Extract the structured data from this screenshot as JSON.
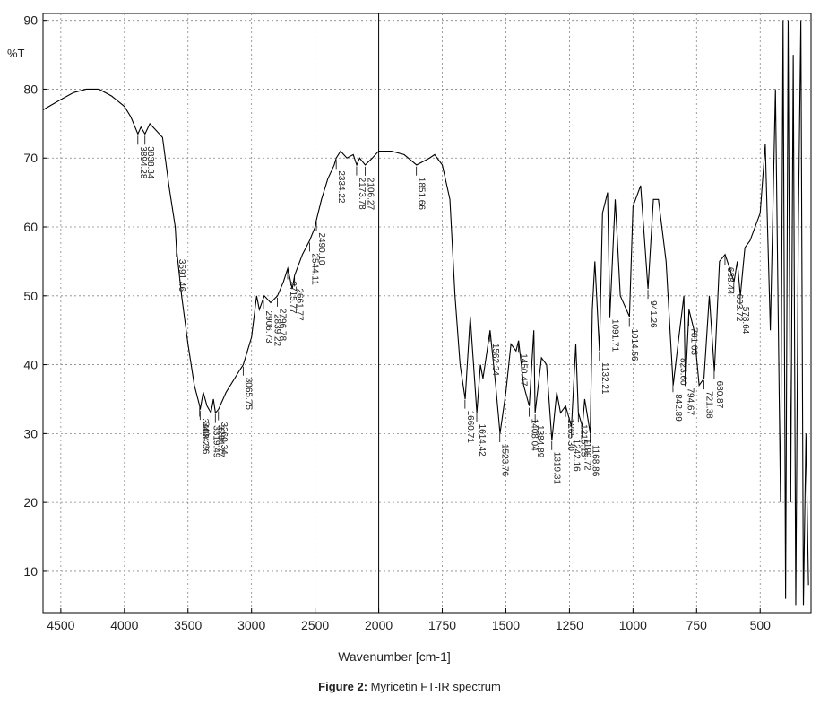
{
  "chart_data": {
    "type": "line",
    "ylabel": "%T",
    "xlabel": "Wavenumber [cm-1]",
    "caption_label": "Figure 2:",
    "caption": "Myricetin FT-IR spectrum",
    "xlim": [
      4640,
      300
    ],
    "scale_break": 2000,
    "ylim": [
      4,
      91
    ],
    "xticks": [
      4500,
      4000,
      3500,
      3000,
      2500,
      2000,
      1750,
      1500,
      1250,
      1000,
      750,
      500
    ],
    "yticks": [
      10,
      20,
      30,
      40,
      50,
      60,
      70,
      80,
      90
    ],
    "grid": true,
    "color": "#000000",
    "x": [
      4640,
      4500,
      4400,
      4300,
      4200,
      4100,
      4000,
      3950,
      3894,
      3870,
      3838,
      3800,
      3750,
      3700,
      3650,
      3600,
      3591,
      3550,
      3500,
      3450,
      3408,
      3404,
      3380,
      3350,
      3319,
      3300,
      3284,
      3260,
      3200,
      3100,
      3065,
      3000,
      2980,
      2960,
      2939,
      2900,
      2850,
      2796,
      2750,
      2715,
      2680,
      2661,
      2600,
      2544,
      2500,
      2490,
      2450,
      2400,
      2350,
      2334,
      2300,
      2250,
      2200,
      2173,
      2150,
      2106,
      2050,
      2000,
      1950,
      1900,
      1851,
      1800,
      1780,
      1750,
      1720,
      1700,
      1680,
      1660,
      1640,
      1614,
      1600,
      1590,
      1562,
      1540,
      1523,
      1500,
      1480,
      1460,
      1450,
      1430,
      1408,
      1390,
      1385,
      1360,
      1340,
      1319,
      1300,
      1285,
      1265,
      1242,
      1225,
      1215,
      1199,
      1190,
      1168,
      1160,
      1150,
      1132,
      1120,
      1100,
      1091,
      1070,
      1050,
      1014,
      1000,
      970,
      941,
      920,
      900,
      870,
      842,
      823,
      800,
      794,
      780,
      760,
      740,
      721,
      700,
      680,
      660,
      638,
      620,
      603,
      590,
      578,
      560,
      540,
      520,
      500,
      480,
      460,
      440,
      420,
      410,
      400,
      390,
      380,
      370,
      360,
      350,
      340,
      330,
      320,
      310
    ],
    "values": [
      77,
      78.5,
      79.5,
      80,
      80,
      79,
      77.5,
      76,
      73.5,
      74.5,
      73.5,
      75,
      74,
      73,
      66,
      60,
      57,
      50,
      43,
      37,
      34,
      33.5,
      36,
      34,
      33,
      35,
      33,
      33.5,
      36,
      39,
      40,
      44,
      47,
      50,
      48,
      50,
      49,
      50,
      52,
      54,
      51,
      53,
      56,
      58,
      60,
      61,
      64,
      67,
      69,
      70,
      71,
      70,
      70.5,
      69,
      70,
      69,
      70,
      71,
      71,
      70.5,
      69,
      70,
      70.5,
      69,
      64,
      50,
      40,
      35,
      47,
      33,
      40,
      38,
      45,
      37,
      30,
      36,
      43,
      42,
      43.5,
      37,
      34,
      45,
      33,
      41,
      40,
      29,
      36,
      33,
      34,
      31,
      43,
      33,
      31,
      35,
      30,
      48,
      55,
      42,
      62,
      65,
      47,
      64,
      50,
      47,
      63,
      66,
      51,
      64,
      64,
      55,
      37,
      43,
      50,
      37,
      48,
      45,
      37,
      38,
      50,
      39,
      55,
      56,
      54,
      52,
      55,
      50,
      57,
      58,
      60,
      62,
      72,
      45,
      80,
      20,
      90,
      6,
      90,
      20,
      85,
      5,
      60,
      90,
      5,
      30,
      8
    ],
    "peaks": [
      {
        "x": 3894.28,
        "label": "3894.28"
      },
      {
        "x": 3838.34,
        "label": "3838.34"
      },
      {
        "x": 3591.46,
        "label": "3591.46"
      },
      {
        "x": 3408.22,
        "label": "3408.22"
      },
      {
        "x": 3404.36,
        "label": "3404.36"
      },
      {
        "x": 3319.49,
        "label": "3319.49"
      },
      {
        "x": 3284.77,
        "label": "3284.77"
      },
      {
        "x": 3260.34,
        "label": "3260.34"
      },
      {
        "x": 3065.75,
        "label": "3065.75"
      },
      {
        "x": 2906.73,
        "label": "2906.73"
      },
      {
        "x": 2839.22,
        "label": "2839.22"
      },
      {
        "x": 2796.78,
        "label": "2796.78"
      },
      {
        "x": 2715.77,
        "label": "2715.77"
      },
      {
        "x": 2661.77,
        "label": "2661.77"
      },
      {
        "x": 2544.11,
        "label": "2544.11"
      },
      {
        "x": 2490.1,
        "label": "2490.10"
      },
      {
        "x": 2334.22,
        "label": "2334.22"
      },
      {
        "x": 2173.78,
        "label": "2173.78"
      },
      {
        "x": 2106.27,
        "label": "2106.27"
      },
      {
        "x": 1851.66,
        "label": "1851.66"
      },
      {
        "x": 1660.71,
        "label": "1660.71"
      },
      {
        "x": 1614.42,
        "label": "1614.42"
      },
      {
        "x": 1562.34,
        "label": "1562.34"
      },
      {
        "x": 1523.76,
        "label": "1523.76"
      },
      {
        "x": 1450.47,
        "label": "1450.47"
      },
      {
        "x": 1408.04,
        "label": "1408.04"
      },
      {
        "x": 1384.89,
        "label": "1384.89"
      },
      {
        "x": 1319.31,
        "label": "1319.31"
      },
      {
        "x": 1265.3,
        "label": "1265.30"
      },
      {
        "x": 1242.16,
        "label": "1242.16"
      },
      {
        "x": 1215.15,
        "label": "1215.15"
      },
      {
        "x": 1199.72,
        "label": "1199.72"
      },
      {
        "x": 1168.86,
        "label": "1168.86"
      },
      {
        "x": 1132.21,
        "label": "1132.21"
      },
      {
        "x": 1091.71,
        "label": "1091.71"
      },
      {
        "x": 1014.56,
        "label": "1014.56"
      },
      {
        "x": 941.26,
        "label": "941.26"
      },
      {
        "x": 842.89,
        "label": "842.89"
      },
      {
        "x": 823.6,
        "label": "823.60"
      },
      {
        "x": 794.67,
        "label": "794.67"
      },
      {
        "x": 781.03,
        "label": "781.03"
      },
      {
        "x": 721.38,
        "label": "721.38"
      },
      {
        "x": 680.87,
        "label": "680.87"
      },
      {
        "x": 638.44,
        "label": "638.44"
      },
      {
        "x": 603.72,
        "label": "603.72"
      },
      {
        "x": 578.64,
        "label": "578.64"
      }
    ]
  }
}
